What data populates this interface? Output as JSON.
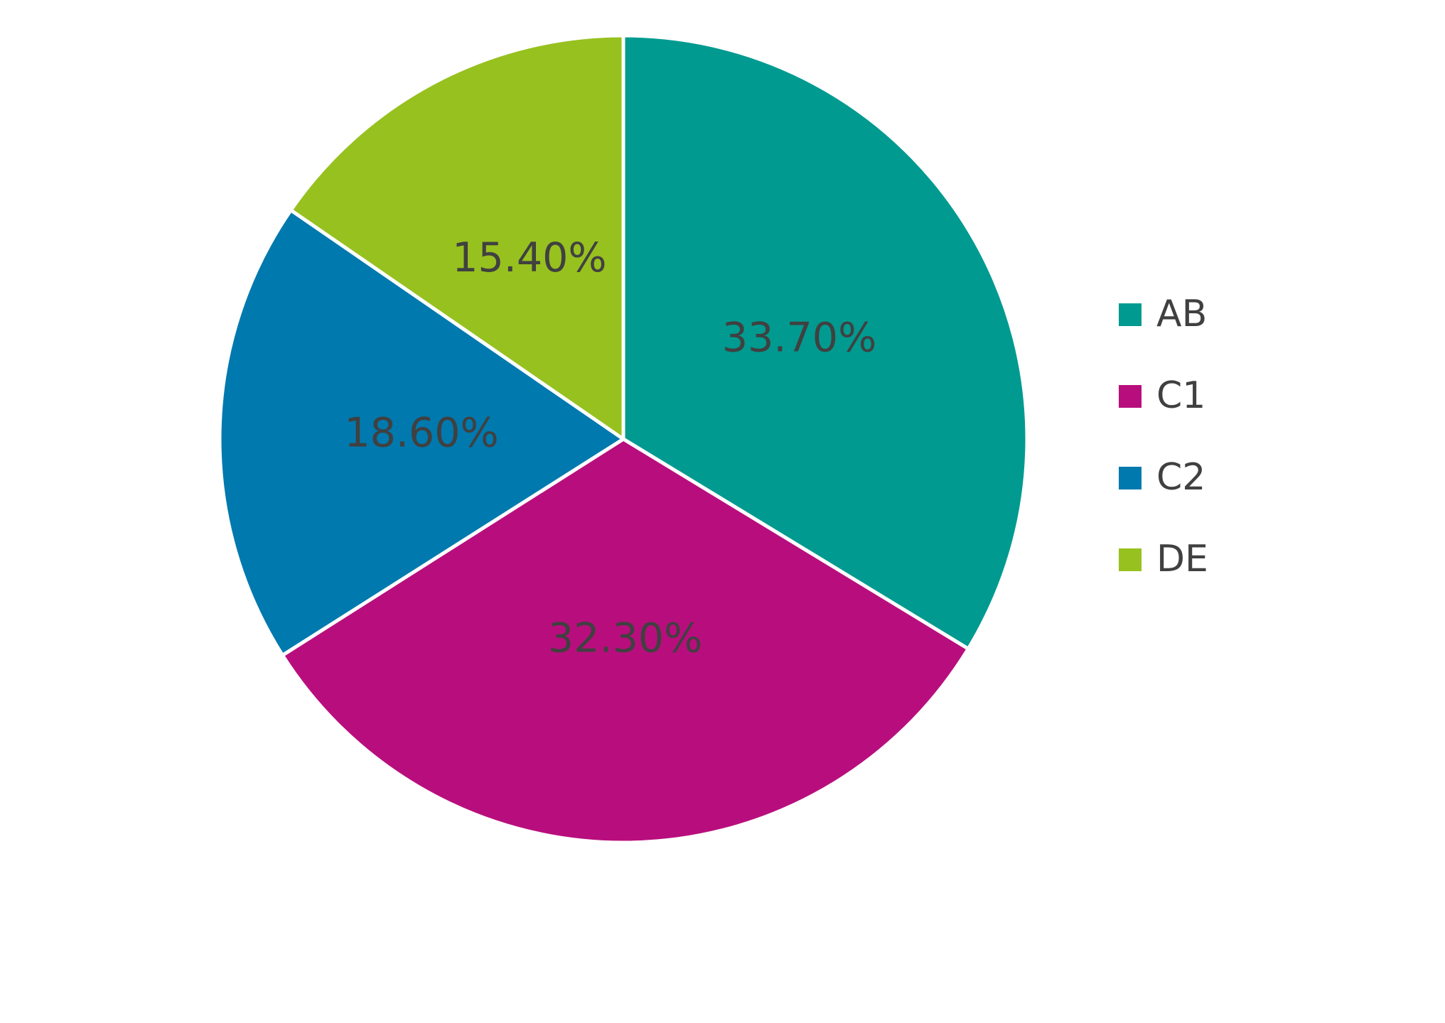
{
  "chart_data": {
    "type": "pie",
    "categories": [
      "AB",
      "C1",
      "C2",
      "DE"
    ],
    "values": [
      33.7,
      32.3,
      18.6,
      15.4
    ],
    "value_labels": [
      "33.70%",
      "32.30%",
      "18.60%",
      "15.40%"
    ],
    "colors": [
      "#009a90",
      "#b80e7d",
      "#0079ae",
      "#97c11f"
    ],
    "legend": "right"
  }
}
